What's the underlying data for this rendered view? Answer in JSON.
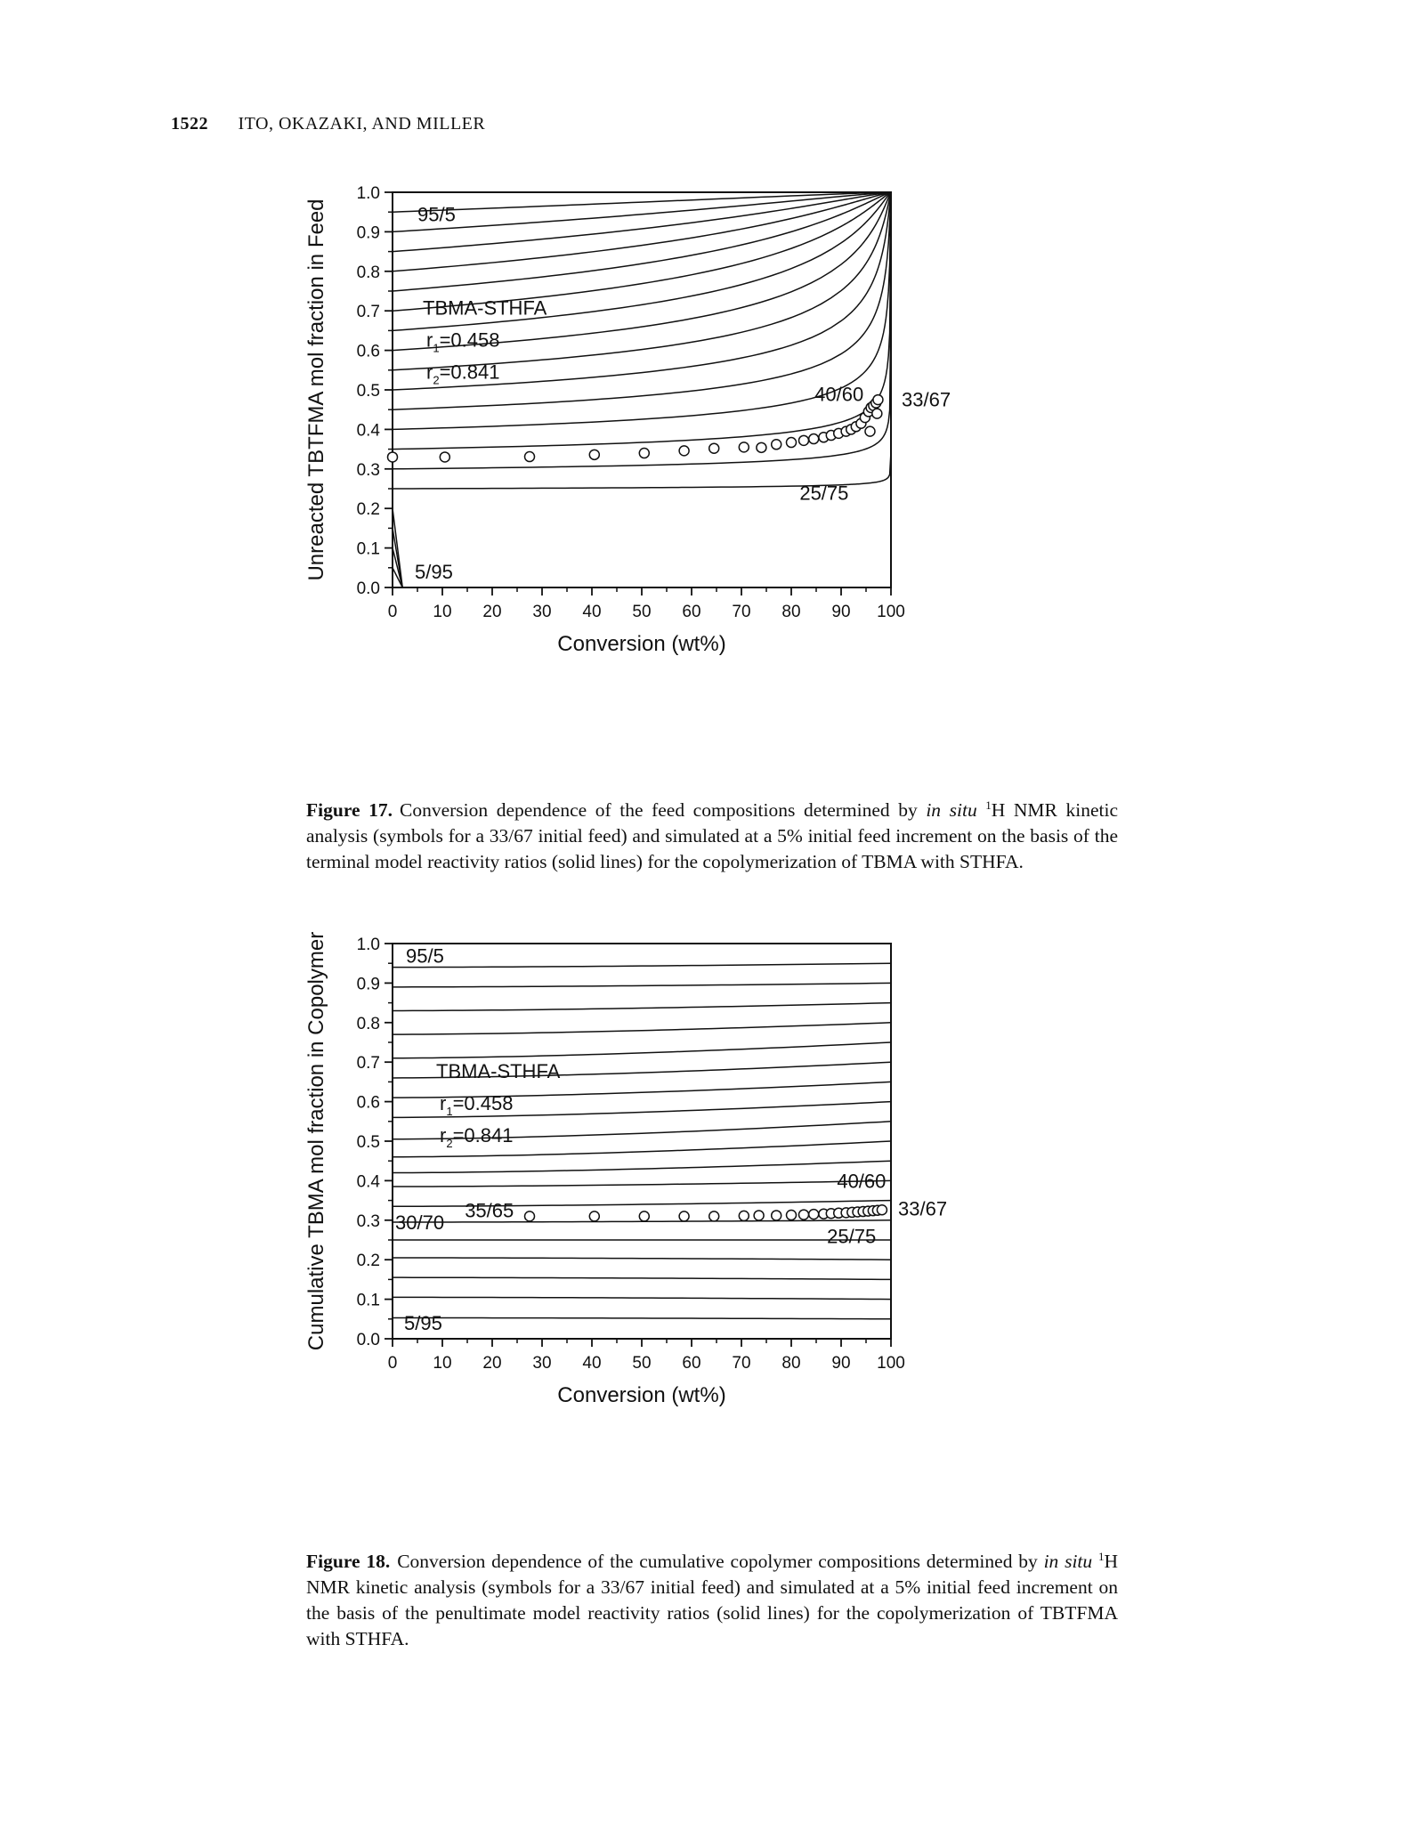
{
  "header": {
    "page_number": "1522",
    "authors": "ITO, OKAZAKI, AND MILLER"
  },
  "figures": [
    {
      "caption": {
        "label": "Figure 17.",
        "segments": [
          "Conversion dependence of the feed compositions determined by ",
          "in situ",
          " ",
          "1",
          "H NMR kinetic analysis (symbols for a 33/67 initial feed) and simulated at a 5% initial feed increment on the basis of the terminal model reactivity ratios (solid lines) for the copolymerization of TBMA with STHFA."
        ]
      },
      "chart_data": {
        "type": "line",
        "xlabel": "Conversion (wt%)",
        "ylabel": "Unreacted TBTFMA mol fraction in Feed",
        "xlim": [
          0,
          100
        ],
        "ylim": [
          0.0,
          1.0
        ],
        "xticks": [
          "0",
          "10",
          "20",
          "30",
          "40",
          "50",
          "60",
          "70",
          "80",
          "90",
          "100"
        ],
        "yticks": [
          "0.0",
          "0.1",
          "0.2",
          "0.3",
          "0.4",
          "0.5",
          "0.6",
          "0.7",
          "0.8",
          "0.9",
          "1.0"
        ],
        "model": {
          "name": "TBMA-STHFA",
          "r1_label": "r",
          "r1_sub": "1",
          "r1_value": "=0.458",
          "r2_label": "r",
          "r2_sub": "2",
          "r2_value": "=0.841",
          "r1": 0.458,
          "r2": 0.841
        },
        "curve_labels": [
          "95/5",
          "40/60",
          "33/67",
          "25/75",
          "5/95"
        ],
        "series": [
          {
            "f0": 0.95
          },
          {
            "f0": 0.9
          },
          {
            "f0": 0.85
          },
          {
            "f0": 0.8
          },
          {
            "f0": 0.75
          },
          {
            "f0": 0.7
          },
          {
            "f0": 0.65
          },
          {
            "f0": 0.6
          },
          {
            "f0": 0.55
          },
          {
            "f0": 0.5
          },
          {
            "f0": 0.45
          },
          {
            "f0": 0.4
          },
          {
            "f0": 0.35
          },
          {
            "f0": 0.3
          },
          {
            "f0": 0.25
          },
          {
            "f0": 0.2
          },
          {
            "f0": 0.15
          },
          {
            "f0": 0.1
          },
          {
            "f0": 0.05
          }
        ],
        "points": [
          [
            0,
            0.33
          ],
          [
            10.5,
            0.33
          ],
          [
            27.5,
            0.331
          ],
          [
            40.5,
            0.336
          ],
          [
            50.5,
            0.34
          ],
          [
            58.5,
            0.346
          ],
          [
            64.5,
            0.352
          ],
          [
            70.5,
            0.355
          ],
          [
            74,
            0.354
          ],
          [
            77,
            0.362
          ],
          [
            80,
            0.367
          ],
          [
            82.5,
            0.372
          ],
          [
            84.5,
            0.376
          ],
          [
            86.5,
            0.38
          ],
          [
            88,
            0.385
          ],
          [
            89.5,
            0.39
          ],
          [
            91,
            0.395
          ],
          [
            92,
            0.4
          ],
          [
            93,
            0.407
          ],
          [
            94,
            0.415
          ],
          [
            94.8,
            0.43
          ],
          [
            95.5,
            0.445
          ],
          [
            96,
            0.455
          ],
          [
            96.5,
            0.46
          ],
          [
            97,
            0.467
          ],
          [
            97.4,
            0.475
          ],
          [
            95.8,
            0.395
          ],
          [
            97.2,
            0.44
          ]
        ]
      }
    },
    {
      "caption": {
        "label": "Figure 18.",
        "segments": [
          "Conversion dependence of the cumulative copolymer compositions determined by ",
          "in situ",
          " ",
          "1",
          "H NMR kinetic analysis (symbols for a 33/67 initial feed) and simulated at a 5% initial feed increment on the basis of the penultimate model reactivity ratios (solid lines) for the copolymerization of TBTFMA with STHFA."
        ]
      },
      "chart_data": {
        "type": "line",
        "xlabel": "Conversion (wt%)",
        "ylabel": "Cumulative TBMA mol fraction in Copolymer",
        "xlim": [
          0,
          100
        ],
        "ylim": [
          0.0,
          1.0
        ],
        "xticks": [
          "0",
          "10",
          "20",
          "30",
          "40",
          "50",
          "60",
          "70",
          "80",
          "90",
          "100"
        ],
        "yticks": [
          "0.0",
          "0.1",
          "0.2",
          "0.3",
          "0.4",
          "0.5",
          "0.6",
          "0.7",
          "0.8",
          "0.9",
          "1.0"
        ],
        "model": {
          "name": "TBMA-STHFA",
          "r1_label": "r",
          "r1_sub": "1",
          "r1_value": "=0.458",
          "r2_label": "r",
          "r2_sub": "2",
          "r2_value": "=0.841",
          "r1": 0.458,
          "r2": 0.841
        },
        "curve_labels": [
          "95/5",
          "40/60",
          "33/67",
          "35/65",
          "30/70",
          "25/75",
          "5/95"
        ],
        "series": [
          {
            "start": 0.94,
            "end": 0.95
          },
          {
            "start": 0.89,
            "end": 0.9
          },
          {
            "start": 0.83,
            "end": 0.85
          },
          {
            "start": 0.77,
            "end": 0.8
          },
          {
            "start": 0.71,
            "end": 0.75
          },
          {
            "start": 0.66,
            "end": 0.7
          },
          {
            "start": 0.61,
            "end": 0.65
          },
          {
            "start": 0.56,
            "end": 0.6
          },
          {
            "start": 0.505,
            "end": 0.55
          },
          {
            "start": 0.46,
            "end": 0.5
          },
          {
            "start": 0.42,
            "end": 0.45
          },
          {
            "start": 0.385,
            "end": 0.4
          },
          {
            "start": 0.335,
            "end": 0.35
          },
          {
            "start": 0.295,
            "end": 0.3
          },
          {
            "start": 0.25,
            "end": 0.25
          },
          {
            "start": 0.205,
            "end": 0.2
          },
          {
            "start": 0.155,
            "end": 0.15
          },
          {
            "start": 0.105,
            "end": 0.1
          },
          {
            "start": 0.053,
            "end": 0.05
          }
        ],
        "points": [
          [
            27.5,
            0.31
          ],
          [
            40.5,
            0.31
          ],
          [
            50.5,
            0.31
          ],
          [
            58.5,
            0.31
          ],
          [
            64.5,
            0.31
          ],
          [
            70.5,
            0.311
          ],
          [
            73.5,
            0.312
          ],
          [
            77,
            0.312
          ],
          [
            80,
            0.313
          ],
          [
            82.5,
            0.314
          ],
          [
            84.5,
            0.315
          ],
          [
            86.5,
            0.316
          ],
          [
            88,
            0.317
          ],
          [
            89.5,
            0.318
          ],
          [
            91,
            0.319
          ],
          [
            92.2,
            0.32
          ],
          [
            93.3,
            0.321
          ],
          [
            94.4,
            0.322
          ],
          [
            95.4,
            0.323
          ],
          [
            96.4,
            0.324
          ],
          [
            97.3,
            0.325
          ],
          [
            98.2,
            0.326
          ]
        ]
      }
    }
  ]
}
